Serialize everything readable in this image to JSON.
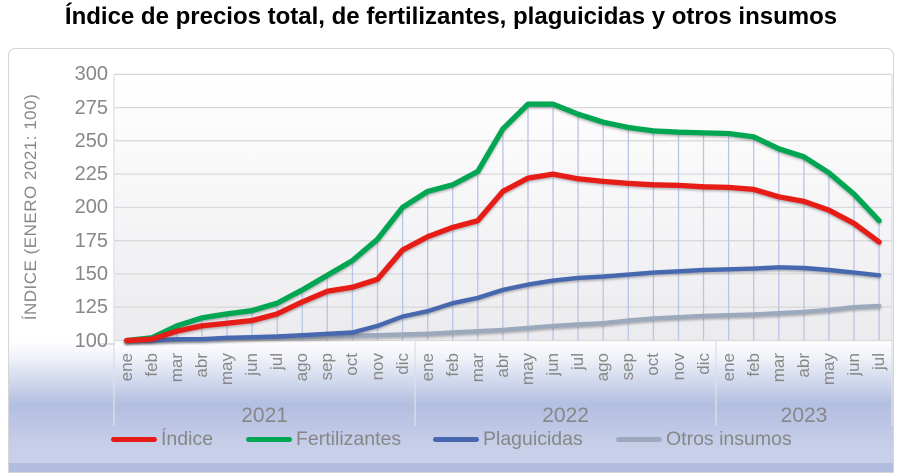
{
  "chart_data": {
    "type": "line",
    "title": "Índice de precios total, de fertilizantes, plaguicidas y otros insumos",
    "ylabel": "ÍNDICE (ENERO 2021: 100)",
    "ylim": [
      100,
      300
    ],
    "ytick_step": 25,
    "y_ticks": [
      300,
      275,
      250,
      225,
      200,
      175,
      150,
      125,
      100
    ],
    "grid": true,
    "droplines": true,
    "legend_position": "bottom",
    "year_groups": [
      {
        "label": "2021",
        "count": 12
      },
      {
        "label": "2022",
        "count": 12
      },
      {
        "label": "2023",
        "count": 7
      }
    ],
    "categories": [
      "ene",
      "feb",
      "mar",
      "abr",
      "may",
      "jun",
      "jul",
      "ago",
      "sep",
      "oct",
      "nov",
      "dic",
      "ene",
      "feb",
      "mar",
      "abr",
      "may",
      "jun",
      "jul",
      "ago",
      "sep",
      "oct",
      "nov",
      "dic",
      "ene",
      "feb",
      "mar",
      "abr",
      "may",
      "jun",
      "jul"
    ],
    "series": [
      {
        "name": "Índice",
        "color": "#e61b17",
        "line_width": 5.3,
        "values": [
          100,
          101,
          107,
          111,
          113,
          115,
          120,
          129,
          137,
          140,
          146,
          168,
          178,
          185,
          190,
          212,
          222,
          225,
          221.5,
          219.5,
          218,
          217,
          216.5,
          215.5,
          215,
          213.5,
          208,
          204.5,
          198,
          188,
          174
        ]
      },
      {
        "name": "Fertilizantes",
        "color": "#00a651",
        "line_width": 5.3,
        "values": [
          100,
          102,
          111,
          117,
          120,
          122.5,
          128,
          138,
          149,
          160,
          176,
          200,
          212,
          217,
          227,
          259,
          277.5,
          277.5,
          270,
          264,
          260,
          257.5,
          256.5,
          256,
          255.5,
          253,
          244,
          238,
          226,
          210,
          190
        ]
      },
      {
        "name": "Plaguicidas",
        "color": "#4767ae",
        "line_width": 4.4,
        "values": [
          100,
          100,
          101,
          101,
          102,
          102.5,
          103,
          104,
          105,
          106,
          111,
          118,
          122,
          128,
          132,
          138,
          142,
          145,
          147,
          148,
          149.5,
          151,
          152,
          153,
          153.5,
          154,
          155,
          154.5,
          153,
          151,
          149
        ]
      },
      {
        "name": "Otros insumos",
        "color": "#9ca9bd",
        "line_width": 4.4,
        "values": [
          100,
          100,
          100.5,
          101,
          101.5,
          102,
          102.5,
          102.5,
          103,
          103.5,
          104,
          104.5,
          105,
          106,
          107,
          108,
          109.5,
          111,
          112,
          113,
          115,
          116.5,
          117.5,
          118.5,
          119,
          119.5,
          120.5,
          121.5,
          123,
          125,
          126
        ]
      }
    ],
    "style": {
      "grid_color": "#d9d9d9",
      "separator_color": "#dcdfe8",
      "dropline_color": "#b9c4e6",
      "axis_text_color": "#878787",
      "band_color": "#b3bfe1",
      "strip_color": "#b2bcde"
    }
  }
}
